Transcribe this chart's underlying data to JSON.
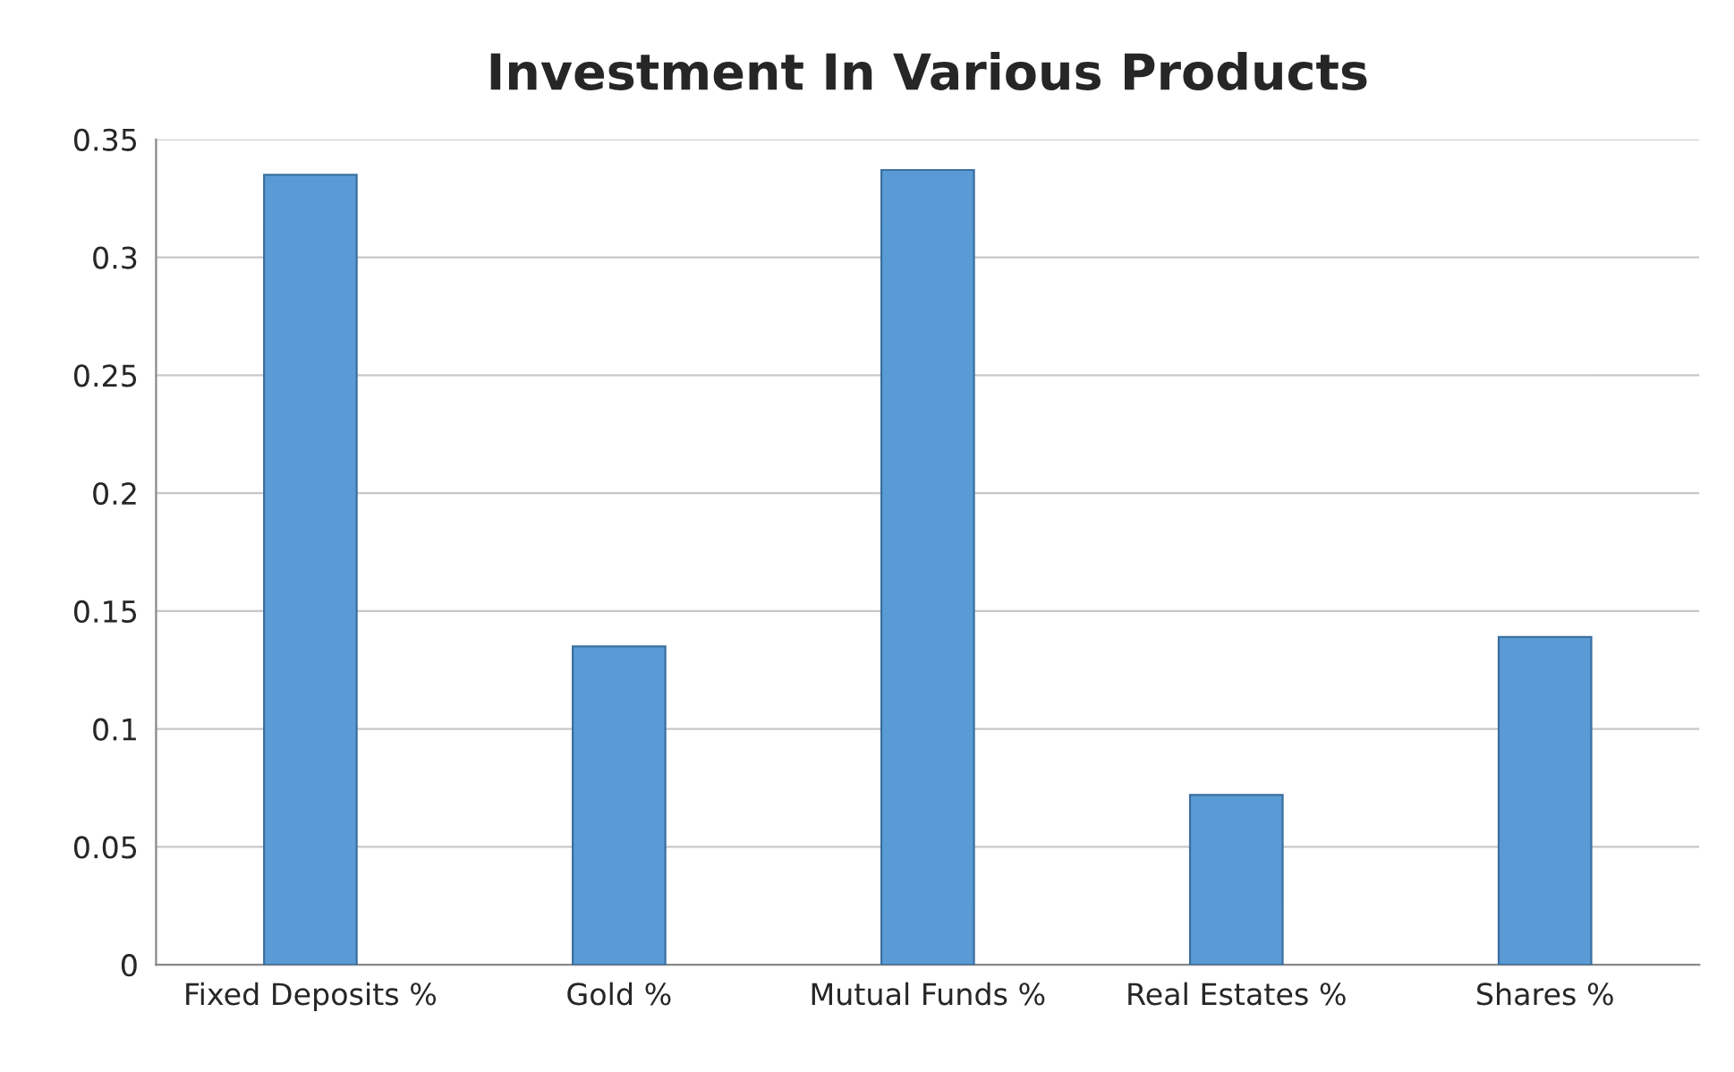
{
  "chart_data": {
    "type": "bar",
    "title": "Investment In Various Products",
    "categories": [
      "Fixed Deposits %",
      "Gold %",
      "Mutual Funds %",
      "Real Estates %",
      "Shares %"
    ],
    "values": [
      0.335,
      0.135,
      0.337,
      0.072,
      0.139
    ],
    "color": "#5b9bd5",
    "ylim": [
      0,
      0.35
    ],
    "yticks": [
      {
        "value": 0,
        "label": "0"
      },
      0.05,
      0.1,
      0.15,
      0.2,
      0.25,
      0.3,
      0.35
    ],
    "grid": "y"
  }
}
